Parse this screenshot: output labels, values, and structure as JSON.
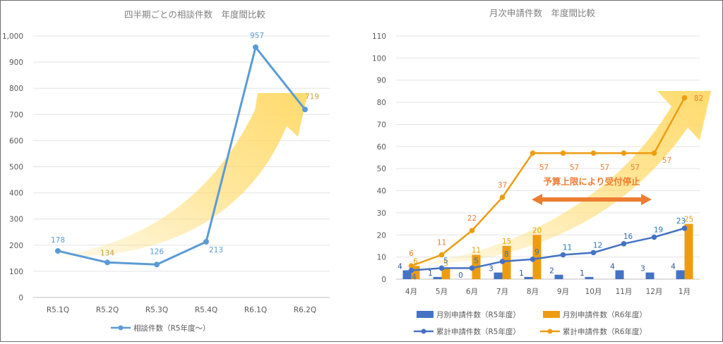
{
  "colors": {
    "blue_line": "#5b9bd5",
    "blue_bar": "#4472c4",
    "orange": "#ed9c12",
    "orange_label": "#ed7d31",
    "arrow_yellow": "#ffd966",
    "annotation": "#ed7d31"
  },
  "chart_data": [
    {
      "type": "line",
      "title": "四半期ごとの相談件数　年度間比較",
      "categories": [
        "R5.1Q",
        "R5.2Q",
        "R5.3Q",
        "R5.4Q",
        "R6.1Q",
        "R6.2Q"
      ],
      "ylim": [
        0,
        1000
      ],
      "y_ticks": [
        "0",
        "100",
        "200",
        "300",
        "400",
        "500",
        "600",
        "700",
        "800",
        "900",
        "1,000"
      ],
      "grid": true,
      "legend_position": "bottom",
      "series": [
        {
          "name": "相談件数（R5年度～）",
          "values": [
            178,
            134,
            126,
            213,
            957,
            719
          ]
        }
      ]
    },
    {
      "type": "bar+line",
      "title": "月次申請件数　年度間比較",
      "categories": [
        "4月",
        "5月",
        "6月",
        "7月",
        "8月",
        "9月",
        "10月",
        "11月",
        "12月",
        "1月"
      ],
      "ylim": [
        0,
        110
      ],
      "y_ticks": [
        "0",
        "10",
        "20",
        "30",
        "40",
        "50",
        "60",
        "70",
        "80",
        "90",
        "100",
        "110"
      ],
      "grid": true,
      "legend_position": "bottom",
      "annotation": "予算上限により受付停止",
      "series": [
        {
          "name": "月別申請件数（R5年度）",
          "kind": "bar",
          "values": [
            4,
            1,
            0,
            3,
            1,
            2,
            1,
            4,
            3,
            4
          ]
        },
        {
          "name": "月別申請件数（R6年度）",
          "kind": "bar",
          "values": [
            6,
            5,
            11,
            15,
            20,
            null,
            null,
            null,
            null,
            25
          ]
        },
        {
          "name": "累計申請件数（R5年度）",
          "kind": "line",
          "values": [
            4,
            5,
            5,
            8,
            9,
            11,
            12,
            16,
            19,
            23
          ]
        },
        {
          "name": "累計申請件数（R6年度）",
          "kind": "line",
          "values": [
            6,
            11,
            22,
            37,
            57,
            57,
            57,
            57,
            57,
            82
          ]
        }
      ]
    }
  ]
}
